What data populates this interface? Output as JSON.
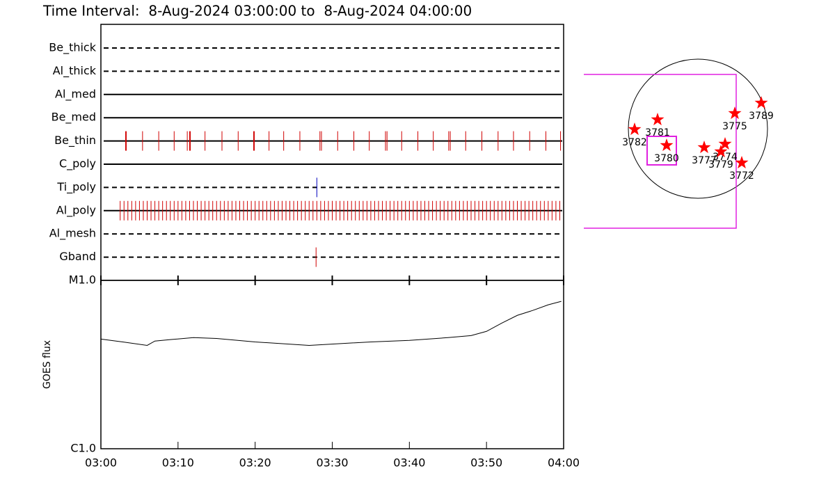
{
  "chart_data": [
    {
      "type": "timeline",
      "title": "Time Interval:  8-Aug-2024 03:00:00 to  8-Aug-2024 04:00:00",
      "xlim": [
        0,
        60
      ],
      "series": [
        {
          "name": "Be_thick",
          "style": "dashed",
          "color": "#d00000",
          "values": []
        },
        {
          "name": "Al_thick",
          "style": "dashed",
          "color": "#d00000",
          "values": []
        },
        {
          "name": "Al_med",
          "style": "solid",
          "color": "#d00000",
          "values": []
        },
        {
          "name": "Be_med",
          "style": "solid",
          "color": "#d00000",
          "values": []
        },
        {
          "name": "Be_thin",
          "style": "solid",
          "color": "#d00000",
          "values": [
            3.2,
            3.3,
            5.4,
            7.5,
            9.5,
            11.2,
            11.5,
            11.6,
            13.5,
            15.7,
            17.8,
            19.8,
            19.9,
            21.8,
            23.7,
            25.8,
            28.4,
            28.6,
            30.7,
            32.8,
            34.8,
            36.9,
            37.1,
            39.0,
            41.1,
            43.1,
            45.1,
            45.3,
            47.3,
            49.4,
            51.5,
            53.5,
            55.6,
            57.7,
            59.6
          ]
        },
        {
          "name": "C_poly",
          "style": "solid",
          "color": "#d00000",
          "values": []
        },
        {
          "name": "Ti_poly",
          "style": "dashed",
          "color": "#0000c0",
          "values": [
            28.0
          ]
        },
        {
          "name": "Al_poly",
          "style": "solid",
          "color": "#d00000",
          "values": [
            2.5,
            3.0,
            3.5,
            4.0,
            4.5,
            5.0,
            5.5,
            6.0,
            6.5,
            7.0,
            7.5,
            8.0,
            8.5,
            9.0,
            9.5,
            10.0,
            10.5,
            11.0,
            11.5,
            12.0,
            12.5,
            13.0,
            13.5,
            14.0,
            14.5,
            15.0,
            15.5,
            16.0,
            16.5,
            17.0,
            17.5,
            18.0,
            18.5,
            19.0,
            19.5,
            20.0,
            20.5,
            21.0,
            21.5,
            22.0,
            22.5,
            23.0,
            23.5,
            24.0,
            24.5,
            25.0,
            25.5,
            26.0,
            26.5,
            27.0,
            27.5,
            28.0,
            28.5,
            29.0,
            29.5,
            30.0,
            30.5,
            31.0,
            31.5,
            32.0,
            32.5,
            33.0,
            33.5,
            34.0,
            34.5,
            35.0,
            35.5,
            36.0,
            36.5,
            37.0,
            37.5,
            38.0,
            38.5,
            39.0,
            39.5,
            40.0,
            40.5,
            41.0,
            41.5,
            42.0,
            42.5,
            43.0,
            43.5,
            44.0,
            44.5,
            45.0,
            45.5,
            46.0,
            46.5,
            47.0,
            47.5,
            48.0,
            48.5,
            49.0,
            49.5,
            50.0,
            50.5,
            51.0,
            51.5,
            52.0,
            52.5,
            53.0,
            53.5,
            54.0,
            54.5,
            55.0,
            55.5,
            56.0,
            56.5,
            57.0,
            57.5,
            58.0,
            58.5,
            59.0,
            59.5
          ]
        },
        {
          "name": "Al_mesh",
          "style": "dashed",
          "color": "#d00000",
          "values": []
        },
        {
          "name": "Gband",
          "style": "dashed",
          "color": "#d00000",
          "values": [
            27.9
          ]
        }
      ]
    },
    {
      "type": "line",
      "ylabel": "GOES flux",
      "log_scale": true,
      "color": "#000000",
      "x": [
        0,
        3,
        6,
        7,
        9,
        12,
        15,
        20,
        27,
        35,
        40,
        45,
        48,
        50,
        52,
        54,
        56,
        58,
        59.7
      ],
      "values": [
        4.48e-06,
        4.3e-06,
        4.11e-06,
        4.36e-06,
        4.45e-06,
        4.57e-06,
        4.52e-06,
        4.31e-06,
        4.11e-06,
        4.31e-06,
        4.4e-06,
        4.57e-06,
        4.7e-06,
        4.98e-06,
        5.58e-06,
        6.2e-06,
        6.63e-06,
        7.16e-06,
        7.51e-06
      ],
      "xlim": [
        0,
        60
      ],
      "xticks": [
        {
          "value": 0,
          "label": "03:00"
        },
        {
          "value": 10,
          "label": "03:10"
        },
        {
          "value": 20,
          "label": "03:20"
        },
        {
          "value": 30,
          "label": "03:30"
        },
        {
          "value": 40,
          "label": "03:40"
        },
        {
          "value": 50,
          "label": "03:50"
        },
        {
          "value": 60,
          "label": "04:00"
        }
      ],
      "ylim": [
        1e-06,
        1e-05
      ],
      "yticks": [
        {
          "value": 1e-06,
          "label": "C1.0"
        },
        {
          "value": 1e-05,
          "label": "M1.0"
        }
      ]
    },
    {
      "type": "scatter",
      "color": "#ff0000",
      "categories": [
        "3781",
        "3782",
        "3780",
        "3777",
        "3774",
        "3779",
        "3772",
        "3775",
        "3789"
      ],
      "x": [
        -0.58,
        -0.91,
        -0.45,
        0.09,
        0.39,
        0.33,
        0.63,
        0.53,
        0.91
      ],
      "values": [
        0.13,
        -0.01,
        -0.24,
        -0.27,
        -0.22,
        -0.33,
        -0.49,
        0.22,
        0.37
      ]
    }
  ]
}
